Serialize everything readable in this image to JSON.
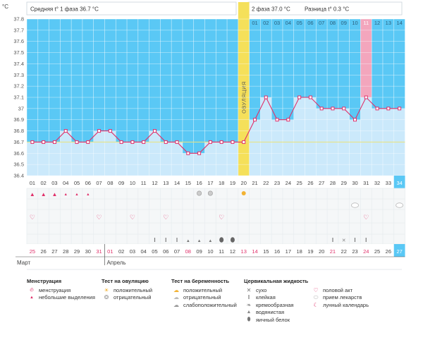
{
  "header": {
    "unit_label": "°C",
    "phase1": "Средняя t° 1 фаза 36.7 °C",
    "phase2": "2 фаза 37.0 °C",
    "difference": "Разница t° 0.3 °C",
    "ovulation_label": "ОВУЛЯЦИЯ"
  },
  "chart_data": {
    "type": "line",
    "y_ticks": [
      "37.8",
      "37.7",
      "37.6",
      "37.5",
      "37.4",
      "37.3",
      "37.2",
      "37.1",
      "37",
      "36.9",
      "36.8",
      "36.7",
      "36.6",
      "36.5",
      "36.4"
    ],
    "ylim": [
      36.4,
      37.8
    ],
    "cycle_days": [
      "01",
      "02",
      "03",
      "04",
      "05",
      "06",
      "07",
      "08",
      "09",
      "10",
      "11",
      "12",
      "13",
      "14",
      "15",
      "16",
      "17",
      "18",
      "19",
      "20",
      "21",
      "22",
      "23",
      "24",
      "25",
      "26",
      "27",
      "28",
      "29",
      "30",
      "31",
      "32",
      "33",
      "34"
    ],
    "temperature": [
      36.7,
      36.7,
      36.7,
      36.8,
      36.7,
      36.7,
      36.8,
      36.8,
      36.7,
      36.7,
      36.7,
      36.8,
      36.7,
      36.7,
      36.6,
      36.6,
      36.7,
      36.7,
      36.7,
      36.7,
      36.9,
      37.1,
      36.9,
      36.9,
      37.1,
      37.1,
      37.0,
      37.0,
      37.0,
      36.9,
      37.1,
      37.0,
      37.0,
      37.0
    ],
    "phase1_average": 36.7,
    "ovulation_day": 20,
    "top_row_numbers": [
      "01",
      "02",
      "03",
      "04",
      "05",
      "06",
      "07",
      "08",
      "09",
      "10",
      "11",
      "12",
      "13",
      "14"
    ],
    "highlight_top_day": "11",
    "highlight_last_day": "34",
    "dates": [
      "25",
      "26",
      "27",
      "28",
      "29",
      "30",
      "31",
      "01",
      "02",
      "03",
      "04",
      "05",
      "06",
      "07",
      "08",
      "09",
      "10",
      "11",
      "12",
      "13",
      "14",
      "15",
      "16",
      "17",
      "18",
      "19",
      "20",
      "21",
      "22",
      "23",
      "24",
      "25",
      "26",
      "27"
    ],
    "red_date_indexes": [
      0,
      6,
      7,
      14,
      19,
      20,
      27,
      30
    ],
    "months": [
      "Март",
      "Апрель"
    ],
    "menstruation_days": {
      "heavy": [
        1,
        2,
        3
      ],
      "light": [
        4,
        5,
        6
      ]
    },
    "intercourse_days": [
      1,
      7,
      10,
      13,
      18,
      31
    ],
    "ovulation_test_days": {
      "positive": [
        20
      ],
      "negative": [
        16,
        17
      ]
    },
    "pregnancy_test_days": {
      "negative": [
        30,
        34
      ]
    },
    "cervical_fluid": {
      "sticky": [
        12,
        13,
        14,
        28,
        30,
        31
      ],
      "dry": [
        29
      ],
      "watery": [
        15,
        16,
        17
      ],
      "egg_white": [
        18,
        19
      ]
    },
    "legend": {
      "menstruation": {
        "title": "Менструация",
        "items": [
          "менструация",
          "небольшие выделения"
        ]
      },
      "ovulation_test": {
        "title": "Тест на овуляцию",
        "items": [
          "положительный",
          "отрицательный"
        ]
      },
      "pregnancy_test": {
        "title": "Тест на беременность",
        "items": [
          "положительный",
          "отрицательный",
          "слабоположительный"
        ]
      },
      "cervical": {
        "title": "Цервикальная жидкость",
        "items": [
          "сухо",
          "клейкая",
          "кремообразная",
          "водянистая",
          "яичный белок"
        ]
      },
      "other": {
        "items": [
          "половой акт",
          "прием лекарств",
          "лунный календарь"
        ]
      }
    },
    "colors": {
      "phase1_fill": "#cbe9fb",
      "top_sky": "#5ac8f5",
      "line": "#e0306a",
      "ovulation_band": "#f5e05a",
      "highlight_pink": "#f3a6bd"
    }
  }
}
